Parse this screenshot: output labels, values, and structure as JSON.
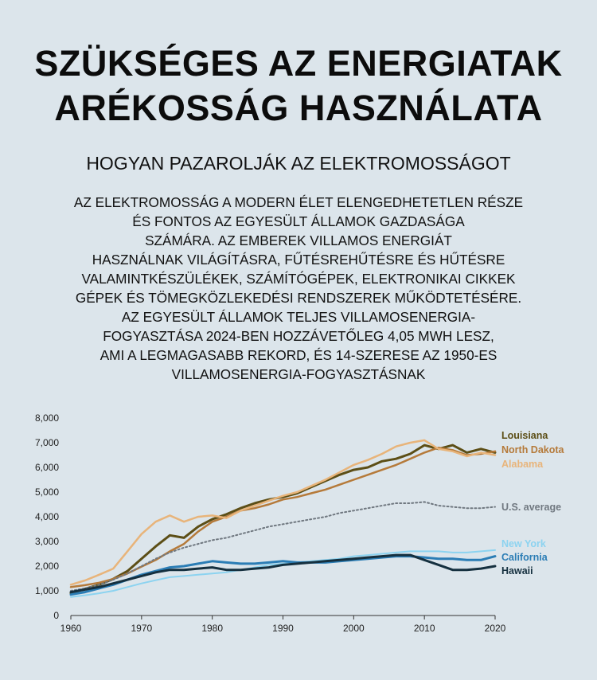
{
  "title_lines": [
    "SZÜKSÉGES AZ ENERGIATAK",
    "ARÉKOSSÁG HASZNÁLATA"
  ],
  "subtitle": "HOGYAN PAZAROLJÁK AZ ELEKTROMOSSÁGOT",
  "body_lines": [
    "AZ ELEKTROMOSSÁG A MODERN ÉLET ELENGEDHETETLEN RÉSZE",
    "ÉS FONTOS AZ EGYESÜLT ÁLLAMOK GAZDASÁGA",
    "SZÁMÁRA. AZ EMBEREK VILLAMOS ENERGIÁT",
    "HASZNÁLNAK VILÁGÍTÁSRA, FŰTÉSREHŰTÉSRE ÉS HŰTÉSRE",
    "VALAMINTKÉSZÜLÉKEK, SZÁMÍTÓGÉPEK, ELEKTRONIKAI CIKKEK",
    "GÉPEK ÉS TÖMEGKÖZLEKEDÉSI RENDSZEREK MŰKÖDTETÉSÉRE.",
    "AZ EGYESÜLT ÁLLAMOK TELJES VILLAMOSENERGIA-",
    "FOGYASZTÁSA 2024-BEN HOZZÁVETŐLEG 4,05 MWH LESZ,",
    "AMI A LEGMAGASABB REKORD, ÉS 14-SZERESE AZ 1950-ES",
    "VILLAMOSENERGIA-FOGYASZTÁSNAK"
  ],
  "chart_data": {
    "type": "line",
    "title": "",
    "xlabel": "",
    "ylabel": "",
    "xlim": [
      1960,
      2020
    ],
    "ylim": [
      0,
      8000
    ],
    "x_ticks": [
      "1960",
      "1970",
      "1980",
      "1990",
      "2000",
      "2010",
      "2020"
    ],
    "y_ticks": [
      "0",
      "1,000",
      "2,000",
      "3,000",
      "4,000",
      "5,000",
      "6,000",
      "7,000",
      "8,000"
    ],
    "grid": false,
    "legend_position": "right, at line ends",
    "x": [
      1960,
      1962,
      1964,
      1966,
      1968,
      1970,
      1972,
      1974,
      1976,
      1978,
      1980,
      1982,
      1984,
      1986,
      1988,
      1990,
      1992,
      1994,
      1996,
      1998,
      2000,
      2002,
      2004,
      2006,
      2008,
      2010,
      2012,
      2014,
      2016,
      2018,
      2020
    ],
    "series": [
      {
        "name": "Louisiana",
        "color": "#5c4e16",
        "width": 3,
        "values": [
          900,
          1080,
          1250,
          1480,
          1800,
          2300,
          2800,
          3250,
          3150,
          3600,
          3900,
          4100,
          4350,
          4550,
          4700,
          4800,
          4950,
          5200,
          5450,
          5700,
          5900,
          6000,
          6250,
          6350,
          6550,
          6900,
          6750,
          6900,
          6600,
          6750,
          6600
        ]
      },
      {
        "name": "North Dakota",
        "color": "#b57a3a",
        "width": 2.5,
        "values": [
          1150,
          1230,
          1330,
          1480,
          1700,
          1980,
          2250,
          2600,
          2900,
          3400,
          3800,
          4000,
          4250,
          4350,
          4500,
          4700,
          4800,
          4950,
          5100,
          5300,
          5500,
          5700,
          5900,
          6100,
          6350,
          6600,
          6800,
          6700,
          6500,
          6550,
          6650
        ]
      },
      {
        "name": "Alabama",
        "color": "#e8b47a",
        "width": 2.5,
        "values": [
          1250,
          1420,
          1650,
          1900,
          2600,
          3300,
          3800,
          4050,
          3800,
          4000,
          4050,
          3950,
          4250,
          4450,
          4650,
          4850,
          5000,
          5250,
          5500,
          5800,
          6100,
          6300,
          6550,
          6850,
          7000,
          7100,
          6750,
          6650,
          6450,
          6600,
          6500
        ]
      },
      {
        "name": "U.S. average",
        "color": "#707880",
        "width": 2,
        "dash": "2,3",
        "values": [
          1000,
          1100,
          1250,
          1450,
          1700,
          2000,
          2300,
          2550,
          2750,
          2900,
          3050,
          3150,
          3300,
          3450,
          3600,
          3700,
          3800,
          3900,
          4000,
          4150,
          4250,
          4350,
          4450,
          4550,
          4550,
          4600,
          4450,
          4400,
          4350,
          4350,
          4400
        ]
      },
      {
        "name": "New York",
        "color": "#8cd3f0",
        "width": 2,
        "values": [
          750,
          820,
          900,
          1000,
          1150,
          1300,
          1430,
          1550,
          1600,
          1650,
          1700,
          1750,
          1850,
          1950,
          2050,
          2100,
          2150,
          2200,
          2250,
          2300,
          2400,
          2450,
          2500,
          2550,
          2600,
          2600,
          2600,
          2550,
          2550,
          2600,
          2650
        ]
      },
      {
        "name": "California",
        "color": "#2b7db5",
        "width": 3,
        "values": [
          850,
          950,
          1100,
          1250,
          1450,
          1650,
          1800,
          1950,
          2000,
          2100,
          2200,
          2150,
          2100,
          2100,
          2150,
          2200,
          2150,
          2150,
          2150,
          2200,
          2250,
          2300,
          2350,
          2400,
          2400,
          2350,
          2300,
          2300,
          2250,
          2250,
          2400
        ]
      },
      {
        "name": "Hawaii",
        "color": "#15303f",
        "width": 3,
        "values": [
          950,
          1050,
          1150,
          1300,
          1450,
          1600,
          1750,
          1850,
          1850,
          1900,
          1950,
          1850,
          1850,
          1900,
          1950,
          2050,
          2100,
          2150,
          2200,
          2250,
          2300,
          2350,
          2400,
          2450,
          2450,
          2250,
          2050,
          1850,
          1850,
          1900,
          2000
        ]
      }
    ]
  }
}
